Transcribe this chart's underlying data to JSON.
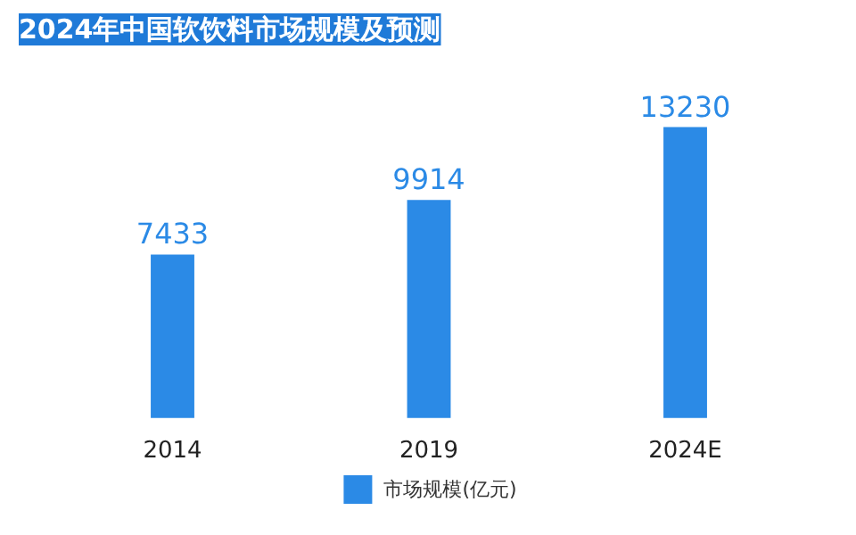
{
  "chart_data": {
    "type": "bar",
    "title": "2024年中国软饮料市场规模及预测",
    "categories": [
      "2014",
      "2019",
      "2024E"
    ],
    "series": [
      {
        "name": "市场规模(亿元)",
        "color": "#2b8ae6",
        "values": [
          7433,
          9914,
          13230
        ]
      }
    ],
    "data_labels": true,
    "legend": "bottom",
    "tick_labels": "x"
  }
}
